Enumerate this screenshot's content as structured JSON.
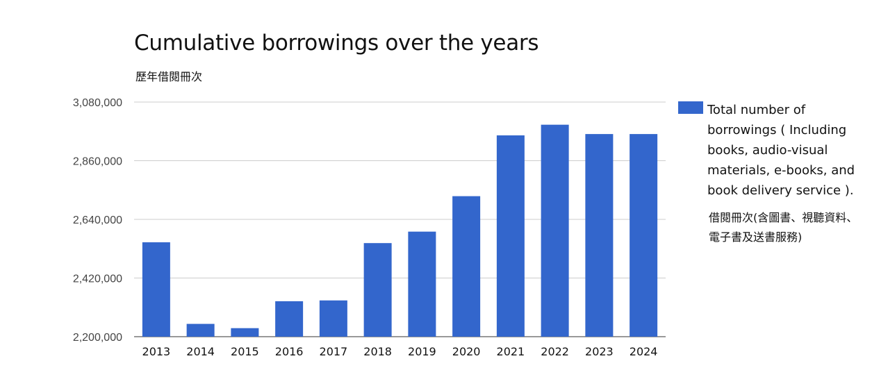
{
  "chart_data": {
    "type": "bar",
    "title": "Cumulative borrowings over the years",
    "subtitle": "歷年借閱冊次",
    "categories": [
      "2013",
      "2014",
      "2015",
      "2016",
      "2017",
      "2018",
      "2019",
      "2020",
      "2021",
      "2022",
      "2023",
      "2024"
    ],
    "series": [
      {
        "name": "Total number of borrowings ( Including books, audio-visual materials, e-books, and book delivery service ).",
        "name_zh": "借閱冊次(含圖書、視聽資料、電子書及送書服務)",
        "color": "#3366CC",
        "values": [
          2554000,
          2248000,
          2232000,
          2333000,
          2336000,
          2551000,
          2594000,
          2727000,
          2955000,
          2995000,
          2960000,
          2960000
        ]
      }
    ],
    "ylim": [
      2200000,
      3080000
    ],
    "yticks": [
      2200000,
      2420000,
      2640000,
      2860000,
      3080000
    ],
    "ytick_labels": [
      "2,200,000",
      "2,420,000",
      "2,640,000",
      "2,860,000",
      "3,080,000"
    ],
    "grid": true,
    "legend_position": "right"
  }
}
